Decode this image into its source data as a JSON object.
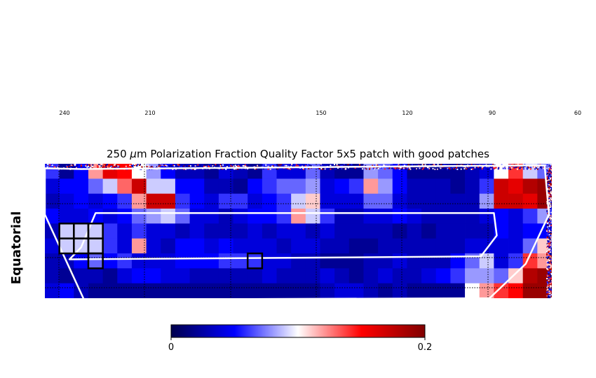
{
  "chart_data": {
    "type": "heatmap",
    "title_pre": "250 ",
    "title_mu": "μ",
    "title_post": "m Polarization Fraction Quality Factor 5x5 patch with good patches",
    "ylabel": "Equatorial",
    "top_ticks": [
      "240",
      "210",
      "150",
      "120",
      "90",
      "60"
    ],
    "colorbar": {
      "colormap": "seismic",
      "range": [
        0,
        0.2
      ],
      "tick_labels": [
        "0",
        "0.2"
      ]
    },
    "grid": {
      "rows": 9,
      "cols": 35,
      "values": [
        [
          0.06,
          0.02,
          0.05,
          0.12,
          0.16,
          0.15,
          0.1,
          0.08,
          0.05,
          0.03,
          0.03,
          0.02,
          0.04,
          0.03,
          0.02,
          0.06,
          0.04,
          0.04,
          0.07,
          0.03,
          0.02,
          0.02,
          0.08,
          0.07,
          0.05,
          0.02,
          0.02,
          0.02,
          0.02,
          0.03,
          0.04,
          0.1,
          0.14,
          0.09,
          0.07
        ],
        [
          0.04,
          0.05,
          0.05,
          0.07,
          0.09,
          0.13,
          0.17,
          0.09,
          0.09,
          0.05,
          0.05,
          0.03,
          0.03,
          0.02,
          0.05,
          0.06,
          0.07,
          0.07,
          0.08,
          0.04,
          0.05,
          0.06,
          0.12,
          0.08,
          0.05,
          0.03,
          0.03,
          0.03,
          0.02,
          0.03,
          0.06,
          0.17,
          0.16,
          0.18,
          0.19
        ],
        [
          0.03,
          0.04,
          0.05,
          0.04,
          0.05,
          0.06,
          0.12,
          0.17,
          0.17,
          0.06,
          0.05,
          0.04,
          0.06,
          0.06,
          0.04,
          0.05,
          0.06,
          0.09,
          0.11,
          0.04,
          0.04,
          0.04,
          0.07,
          0.07,
          0.04,
          0.03,
          0.03,
          0.03,
          0.03,
          0.03,
          0.08,
          0.17,
          0.17,
          0.16,
          0.19
        ],
        [
          0.05,
          0.04,
          0.04,
          0.05,
          0.04,
          0.05,
          0.07,
          0.08,
          0.09,
          0.07,
          0.04,
          0.04,
          0.03,
          0.04,
          0.05,
          0.05,
          0.06,
          0.12,
          0.09,
          0.06,
          0.03,
          0.03,
          0.04,
          0.04,
          0.05,
          0.04,
          0.03,
          0.03,
          0.03,
          0.03,
          0.04,
          0.05,
          0.04,
          0.06,
          0.08
        ],
        [
          0.03,
          0.09,
          0.09,
          0.09,
          0.06,
          0.04,
          0.06,
          0.04,
          0.04,
          0.03,
          0.04,
          0.03,
          0.03,
          0.03,
          0.04,
          0.03,
          0.04,
          0.04,
          0.03,
          0.04,
          0.03,
          0.03,
          0.03,
          0.03,
          0.02,
          0.03,
          0.02,
          0.03,
          0.03,
          0.03,
          0.03,
          0.05,
          0.04,
          0.05,
          0.05
        ],
        [
          0.04,
          0.09,
          0.09,
          0.09,
          0.06,
          0.04,
          0.12,
          0.04,
          0.03,
          0.05,
          0.05,
          0.04,
          0.05,
          0.04,
          0.04,
          0.04,
          0.03,
          0.04,
          0.04,
          0.03,
          0.03,
          0.02,
          0.02,
          0.03,
          0.03,
          0.03,
          0.03,
          0.03,
          0.03,
          0.04,
          0.04,
          0.04,
          0.04,
          0.07,
          0.11
        ],
        [
          0.03,
          0.03,
          0.05,
          0.07,
          0.05,
          0.06,
          0.04,
          0.04,
          0.04,
          0.05,
          0.05,
          0.05,
          0.06,
          0.06,
          0.06,
          0.04,
          0.04,
          0.03,
          0.03,
          0.02,
          0.02,
          0.02,
          0.03,
          0.03,
          0.04,
          0.03,
          0.03,
          0.03,
          0.05,
          0.07,
          0.09,
          0.04,
          0.06,
          0.14,
          0.12
        ],
        [
          0.03,
          0.02,
          0.03,
          0.03,
          0.02,
          0.04,
          0.05,
          0.05,
          0.04,
          0.04,
          0.03,
          0.03,
          0.03,
          0.03,
          0.03,
          0.04,
          0.03,
          0.03,
          0.03,
          0.04,
          0.03,
          0.02,
          0.03,
          0.04,
          0.03,
          0.03,
          0.04,
          0.05,
          0.06,
          0.08,
          0.08,
          0.07,
          0.11,
          0.18,
          0.19
        ],
        [
          0.04,
          0.05,
          0.03,
          0.02,
          0.02,
          0.02,
          0.02,
          0.02,
          0.02,
          0.02,
          0.02,
          0.02,
          0.02,
          0.02,
          0.02,
          0.02,
          0.02,
          0.02,
          0.02,
          0.03,
          0.04,
          0.04,
          0.03,
          0.02,
          0.03,
          0.02,
          0.02,
          0.02,
          0.02,
          0.1,
          0.12,
          0.14,
          0.15,
          0.19,
          0.19
        ]
      ],
      "good_patches": [
        [
          4,
          1
        ],
        [
          4,
          2
        ],
        [
          4,
          3
        ],
        [
          5,
          1
        ],
        [
          5,
          2
        ],
        [
          5,
          3
        ],
        [
          6,
          3
        ],
        [
          6,
          14
        ]
      ]
    },
    "outlines": {
      "outer": [
        [
          0.0,
          0.3
        ],
        [
          2.5,
          0.35
        ],
        [
          34.5,
          0.1
        ],
        [
          34.8,
          3.4
        ],
        [
          33.2,
          6.7
        ],
        [
          30.7,
          9.0
        ],
        [
          2.7,
          9.1
        ],
        [
          0.0,
          3.4
        ]
      ],
      "inner": [
        [
          3.5,
          3.3
        ],
        [
          31.0,
          3.3
        ],
        [
          31.2,
          4.8
        ],
        [
          30.1,
          6.2
        ],
        [
          1.7,
          6.4
        ],
        [
          2.5,
          5.6
        ],
        [
          3.5,
          3.3
        ]
      ]
    }
  }
}
